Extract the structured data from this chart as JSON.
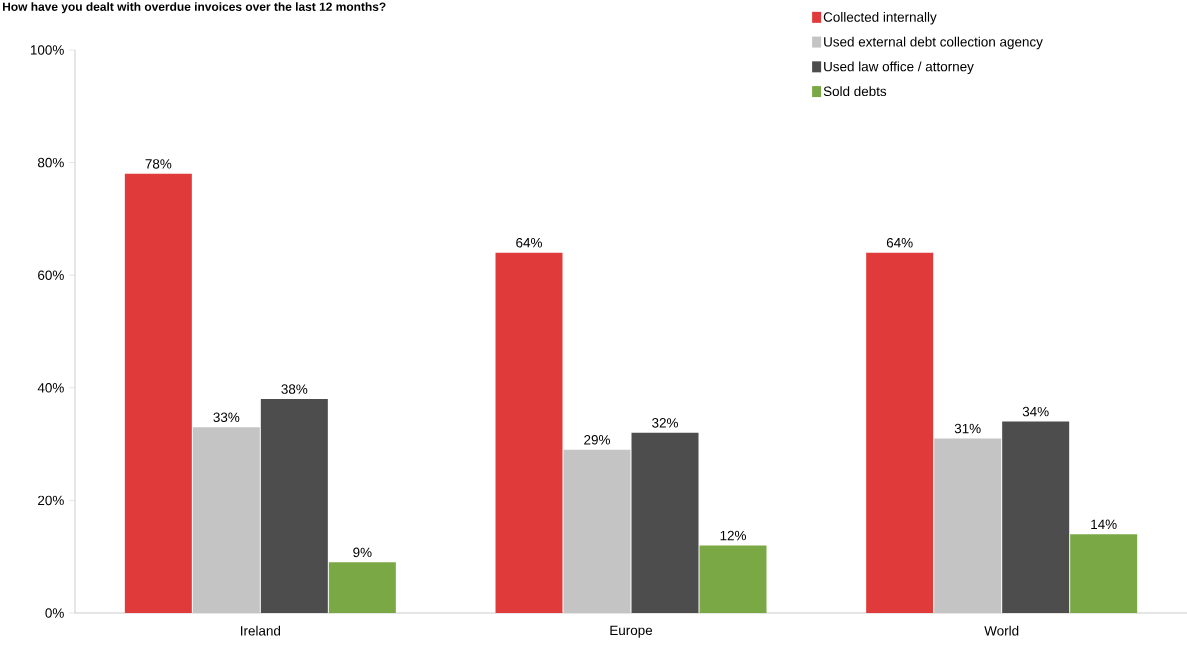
{
  "chart_data": {
    "type": "bar",
    "title": "How have you dealt with overdue invoices over the last 12 months?",
    "categories": [
      "Ireland",
      "Europe",
      "World"
    ],
    "series": [
      {
        "name": "Collected internally",
        "color": "#e03a3a",
        "values": [
          78,
          64,
          64
        ],
        "value_labels": [
          "78%",
          "64%",
          "64%"
        ]
      },
      {
        "name": "Used external debt collection agency",
        "color": "#c4c4c4",
        "values": [
          33,
          29,
          31
        ],
        "value_labels": [
          "33%",
          "29%",
          "31%"
        ]
      },
      {
        "name": "Used law office / attorney",
        "color": "#4d4d4d",
        "values": [
          38,
          32,
          34
        ],
        "value_labels": [
          "38%",
          "32%",
          "34%"
        ]
      },
      {
        "name": "Sold debts",
        "color": "#7aa844",
        "values": [
          9,
          12,
          14
        ],
        "value_labels": [
          "9%",
          "12%",
          "14%"
        ]
      }
    ],
    "ylim": [
      0,
      100
    ],
    "yticks": [
      {
        "value": 0,
        "label": "0%"
      },
      {
        "value": 20,
        "label": "20%"
      },
      {
        "value": 40,
        "label": "40%"
      },
      {
        "value": 60,
        "label": "60%"
      },
      {
        "value": 80,
        "label": "80%"
      },
      {
        "value": 100,
        "label": "100%"
      }
    ],
    "grid": false,
    "legend": "top right"
  }
}
